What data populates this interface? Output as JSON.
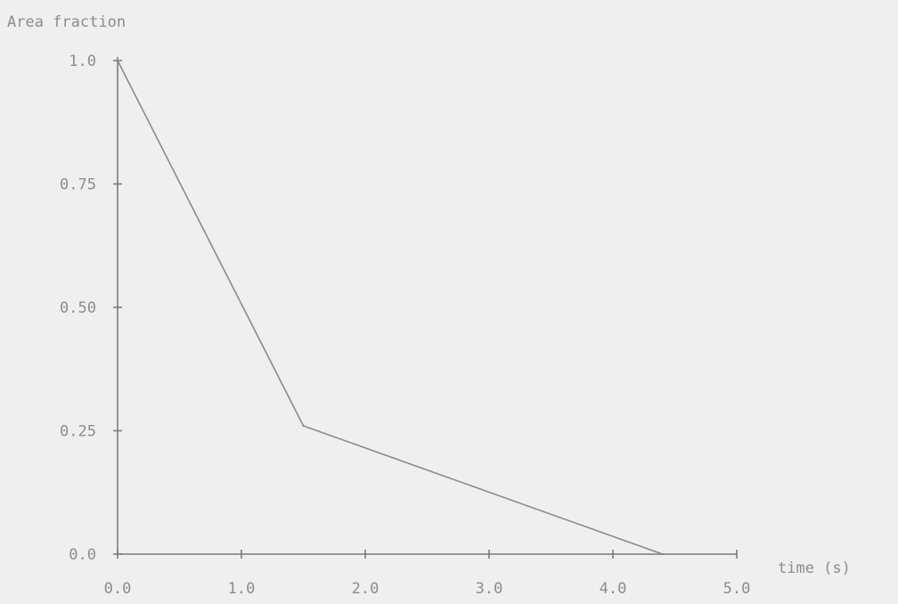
{
  "chart_data": {
    "type": "line",
    "title": "",
    "ylabel": "Area fraction",
    "xlabel": "time (s)",
    "xlim": [
      0,
      5
    ],
    "ylim": [
      0,
      1
    ],
    "x_ticks": [
      {
        "value": 0,
        "label": "0.0"
      },
      {
        "value": 1,
        "label": "1.0"
      },
      {
        "value": 2,
        "label": "2.0"
      },
      {
        "value": 3,
        "label": "3.0"
      },
      {
        "value": 4,
        "label": "4.0"
      },
      {
        "value": 5,
        "label": "5.0"
      }
    ],
    "y_ticks": [
      {
        "value": 0,
        "label": "0.0"
      },
      {
        "value": 0.25,
        "label": "0.25"
      },
      {
        "value": 0.5,
        "label": "0.50"
      },
      {
        "value": 0.75,
        "label": "0.75"
      },
      {
        "value": 1,
        "label": "1.0"
      }
    ],
    "series": [
      {
        "x": [
          0,
          1.5,
          4.4
        ],
        "y": [
          1.0,
          0.26,
          0.0
        ]
      }
    ],
    "grid": false,
    "colors": {
      "line": "#8a8a8a",
      "axis": "#7a7a7a",
      "text": "#8c8c8c",
      "background": "#efefef"
    }
  }
}
